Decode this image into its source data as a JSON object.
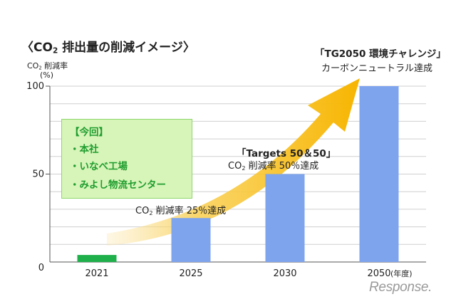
{
  "title": {
    "prefix": "〈CO",
    "sub": "2",
    "suffix": " 排出量の削減イメージ〉"
  },
  "ylabel": {
    "line1_prefix": "CO",
    "line1_sub": "2",
    "line1_suffix": " 削減率",
    "line2": "(%)"
  },
  "callout": {
    "heading": "【今回】",
    "items": [
      "・本社",
      "・いなべ工場",
      "・みよし物流センター"
    ]
  },
  "annotations": {
    "a2025": {
      "prefix": "CO",
      "sub": "2",
      "suffix": " 削減率 25％達成"
    },
    "a2030_title": "「Targets 50＆50」",
    "a2030": {
      "prefix": "CO",
      "sub": "2",
      "suffix": " 削減率 50％達成"
    },
    "a2050_title": "「TG2050 環境チャレンジ」",
    "a2050": "カーボンニュートラル達成"
  },
  "year_unit": "(年度)",
  "logo": "Response.",
  "colors": {
    "bar_current": "#1fb04b",
    "bar_target": "#7ea4ee",
    "arrow": "#f7b500",
    "grid": "#cfcfcf"
  },
  "chart_data": {
    "type": "bar",
    "categories": [
      "2021",
      "2025",
      "2030",
      "2050"
    ],
    "values": [
      4,
      25,
      50,
      100
    ],
    "ylim": [
      0,
      100
    ],
    "yticks": [
      0,
      50,
      100
    ],
    "xlabel": "",
    "ylabel": "CO2 削減率 (%)",
    "grid": true
  }
}
